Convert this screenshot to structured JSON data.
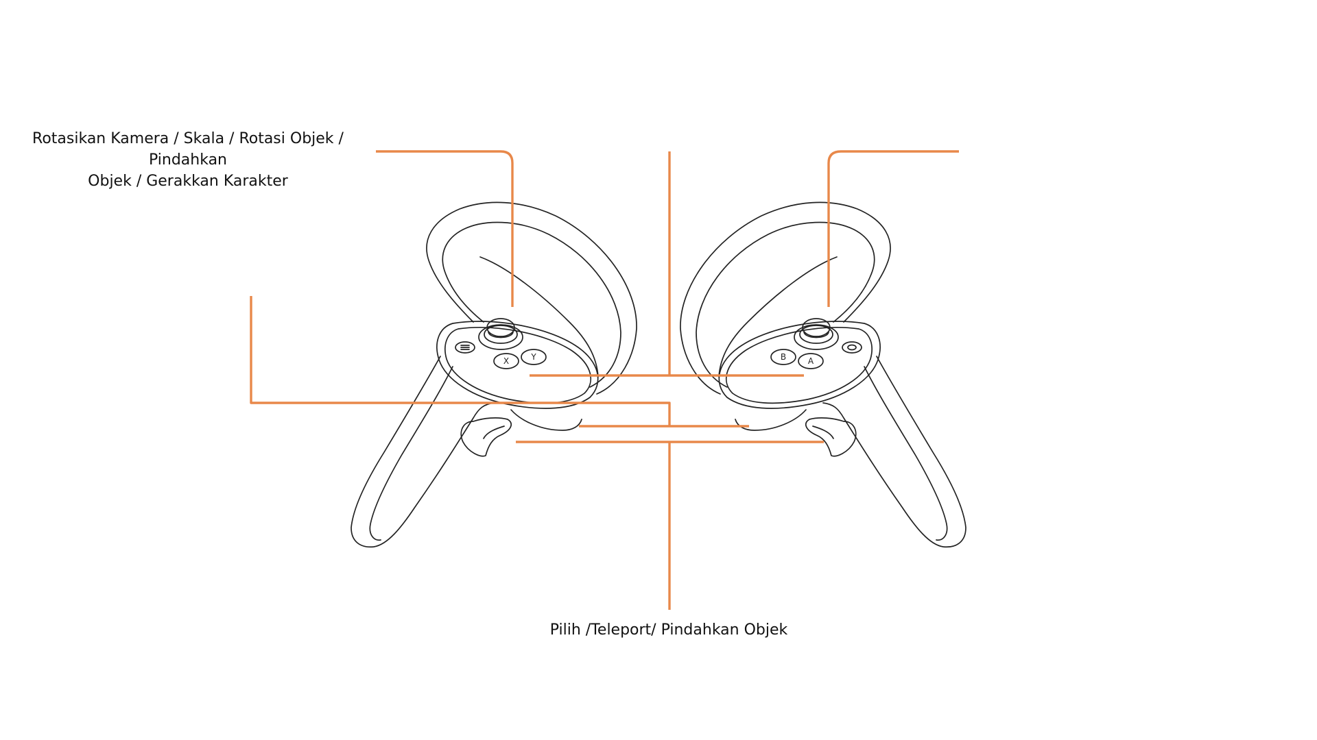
{
  "labels": {
    "thumbstick_action": "Rotasikan Kamera / Skala / Rotasi Objek / Pindahkan\nObjek / Gerakkan Karakter",
    "trigger_action": "Pilih /Teleport/ Pindahkan Objek"
  },
  "controllers": {
    "left": {
      "buttons": [
        "X",
        "Y"
      ],
      "menu_icon": "menu-icon"
    },
    "right": {
      "buttons": [
        "B",
        "A"
      ],
      "menu_icon": "oculus-icon"
    }
  },
  "colors": {
    "callout_line": "#e8884a",
    "outline": "#222222",
    "text": "#111111",
    "background": "#ffffff"
  }
}
